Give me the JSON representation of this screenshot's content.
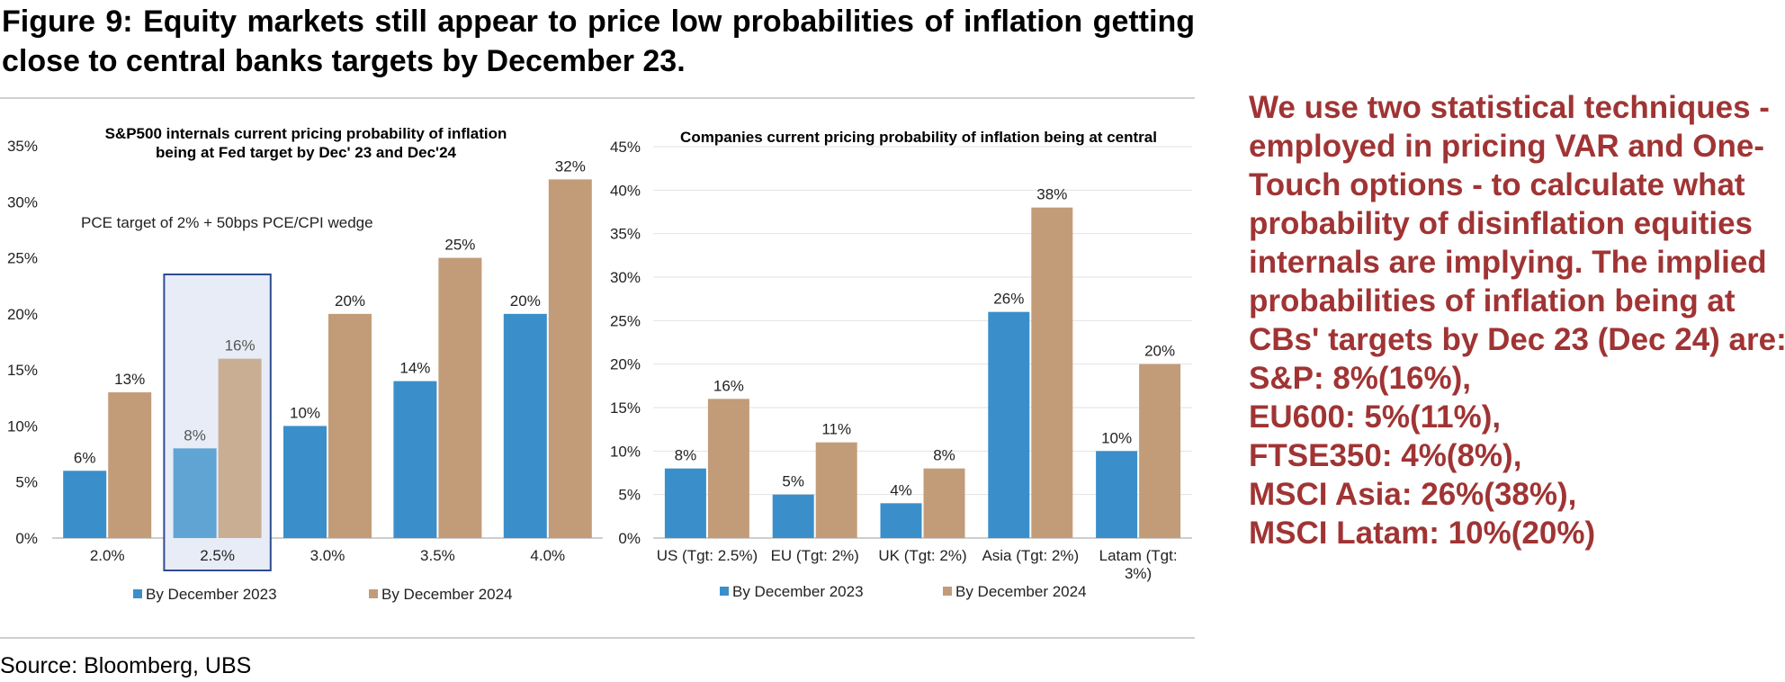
{
  "figure_title": "Figure 9: Equity markets still appear to price low probabilities of inflation getting close to central banks targets by December 23.",
  "source": "Source: Bloomberg, UBS",
  "side_note": [
    "We use two statistical techniques -",
    "employed in pricing VAR and One-",
    "Touch options - to calculate what",
    "probability of disinflation equities",
    "internals are implying. The implied",
    "probabilities of inflation being at",
    "CBs' targets by Dec 23 (Dec 24) are:",
    "S&P: 8%(16%),",
    "EU600: 5%(11%),",
    "FTSE350: 4%(8%),",
    "MSCI Asia: 26%(38%),",
    "MSCI Latam: 10%(20%)"
  ],
  "colors": {
    "series_2023": "#3a8fca",
    "series_2024": "#c29c78",
    "highlight_box": "#2e4d8f",
    "highlight_fill": "#e8ecf7",
    "side_note": "#a03434"
  },
  "chart_data": [
    {
      "type": "bar",
      "title": "S&P500 internals current pricing probability of inflation being at Fed target by Dec' 23 and Dec'24",
      "annotation": "PCE target of 2% + 50bps PCE/CPI wedge",
      "categories": [
        "2.0%",
        "2.5%",
        "3.0%",
        "3.5%",
        "4.0%"
      ],
      "highlight_category": "2.5%",
      "series": [
        {
          "name": "By December 2023",
          "values": [
            6,
            8,
            10,
            14,
            20
          ],
          "labels": [
            "6%",
            "8%",
            "10%",
            "14%",
            "20%"
          ]
        },
        {
          "name": "By December 2024",
          "values": [
            13,
            16,
            20,
            25,
            32
          ],
          "labels": [
            "13%",
            "16%",
            "20%",
            "25%",
            "32%"
          ]
        }
      ],
      "ylim": [
        0,
        35
      ],
      "yticks": [
        "0%",
        "5%",
        "10%",
        "15%",
        "20%",
        "25%",
        "30%",
        "35%"
      ],
      "legend": "bottom",
      "grid": false
    },
    {
      "type": "bar",
      "title": "Companies current pricing probability of inflation being at central",
      "categories": [
        "US (Tgt: 2.5%)",
        "EU (Tgt: 2%)",
        "UK (Tgt: 2%)",
        "Asia (Tgt: 2%)",
        "Latam (Tgt: 3%)"
      ],
      "series": [
        {
          "name": "By December 2023",
          "values": [
            8,
            5,
            4,
            26,
            10
          ],
          "labels": [
            "8%",
            "5%",
            "4%",
            "26%",
            "10%"
          ]
        },
        {
          "name": "By December 2024",
          "values": [
            16,
            11,
            8,
            38,
            20
          ],
          "labels": [
            "16%",
            "11%",
            "8%",
            "38%",
            "20%"
          ]
        }
      ],
      "ylim": [
        0,
        45
      ],
      "yticks": [
        "0%",
        "5%",
        "10%",
        "15%",
        "20%",
        "25%",
        "30%",
        "35%",
        "40%",
        "45%"
      ],
      "legend": "bottom",
      "grid": true
    }
  ]
}
